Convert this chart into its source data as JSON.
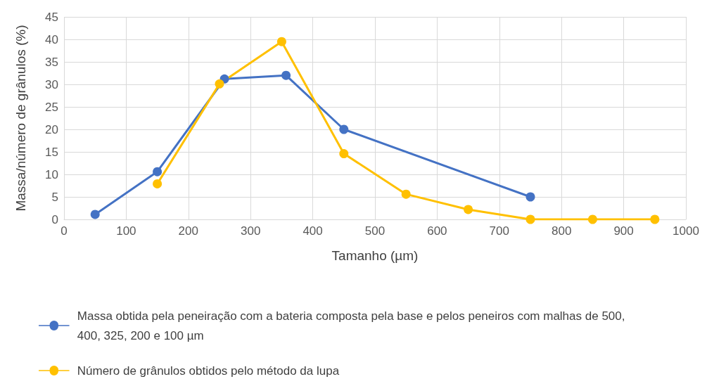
{
  "chart_data": {
    "type": "line",
    "xlabel": "Tamanho (µm)",
    "ylabel": "Massa/número de grânulos (%)",
    "xlim": [
      0,
      1000
    ],
    "xticks": [
      0,
      100,
      200,
      300,
      400,
      500,
      600,
      700,
      800,
      900,
      1000
    ],
    "ylim": [
      0,
      45
    ],
    "yticks": [
      0,
      5,
      10,
      15,
      20,
      25,
      30,
      35,
      40,
      45
    ],
    "grid": true,
    "legend": "bottom",
    "marker": "circle",
    "line_style": "solid",
    "series": [
      {
        "name": "Massa obtida pela peneiração com a bateria composta pela base e pelos peneiros com malhas de 500, 400, 325, 200 e 100 µm",
        "color": "#4472c4",
        "x": [
          50,
          150,
          258,
          357,
          450,
          750
        ],
        "values": [
          1.1,
          10.6,
          31.2,
          32.0,
          20.0,
          5.0
        ]
      },
      {
        "name": "Número de grânulos obtidos pelo método da lupa",
        "color": "#ffc000",
        "x": [
          150,
          250,
          350,
          450,
          550,
          650,
          750,
          850,
          950
        ],
        "values": [
          7.9,
          30.1,
          39.5,
          14.6,
          5.6,
          2.2,
          0,
          0,
          0
        ]
      }
    ]
  }
}
